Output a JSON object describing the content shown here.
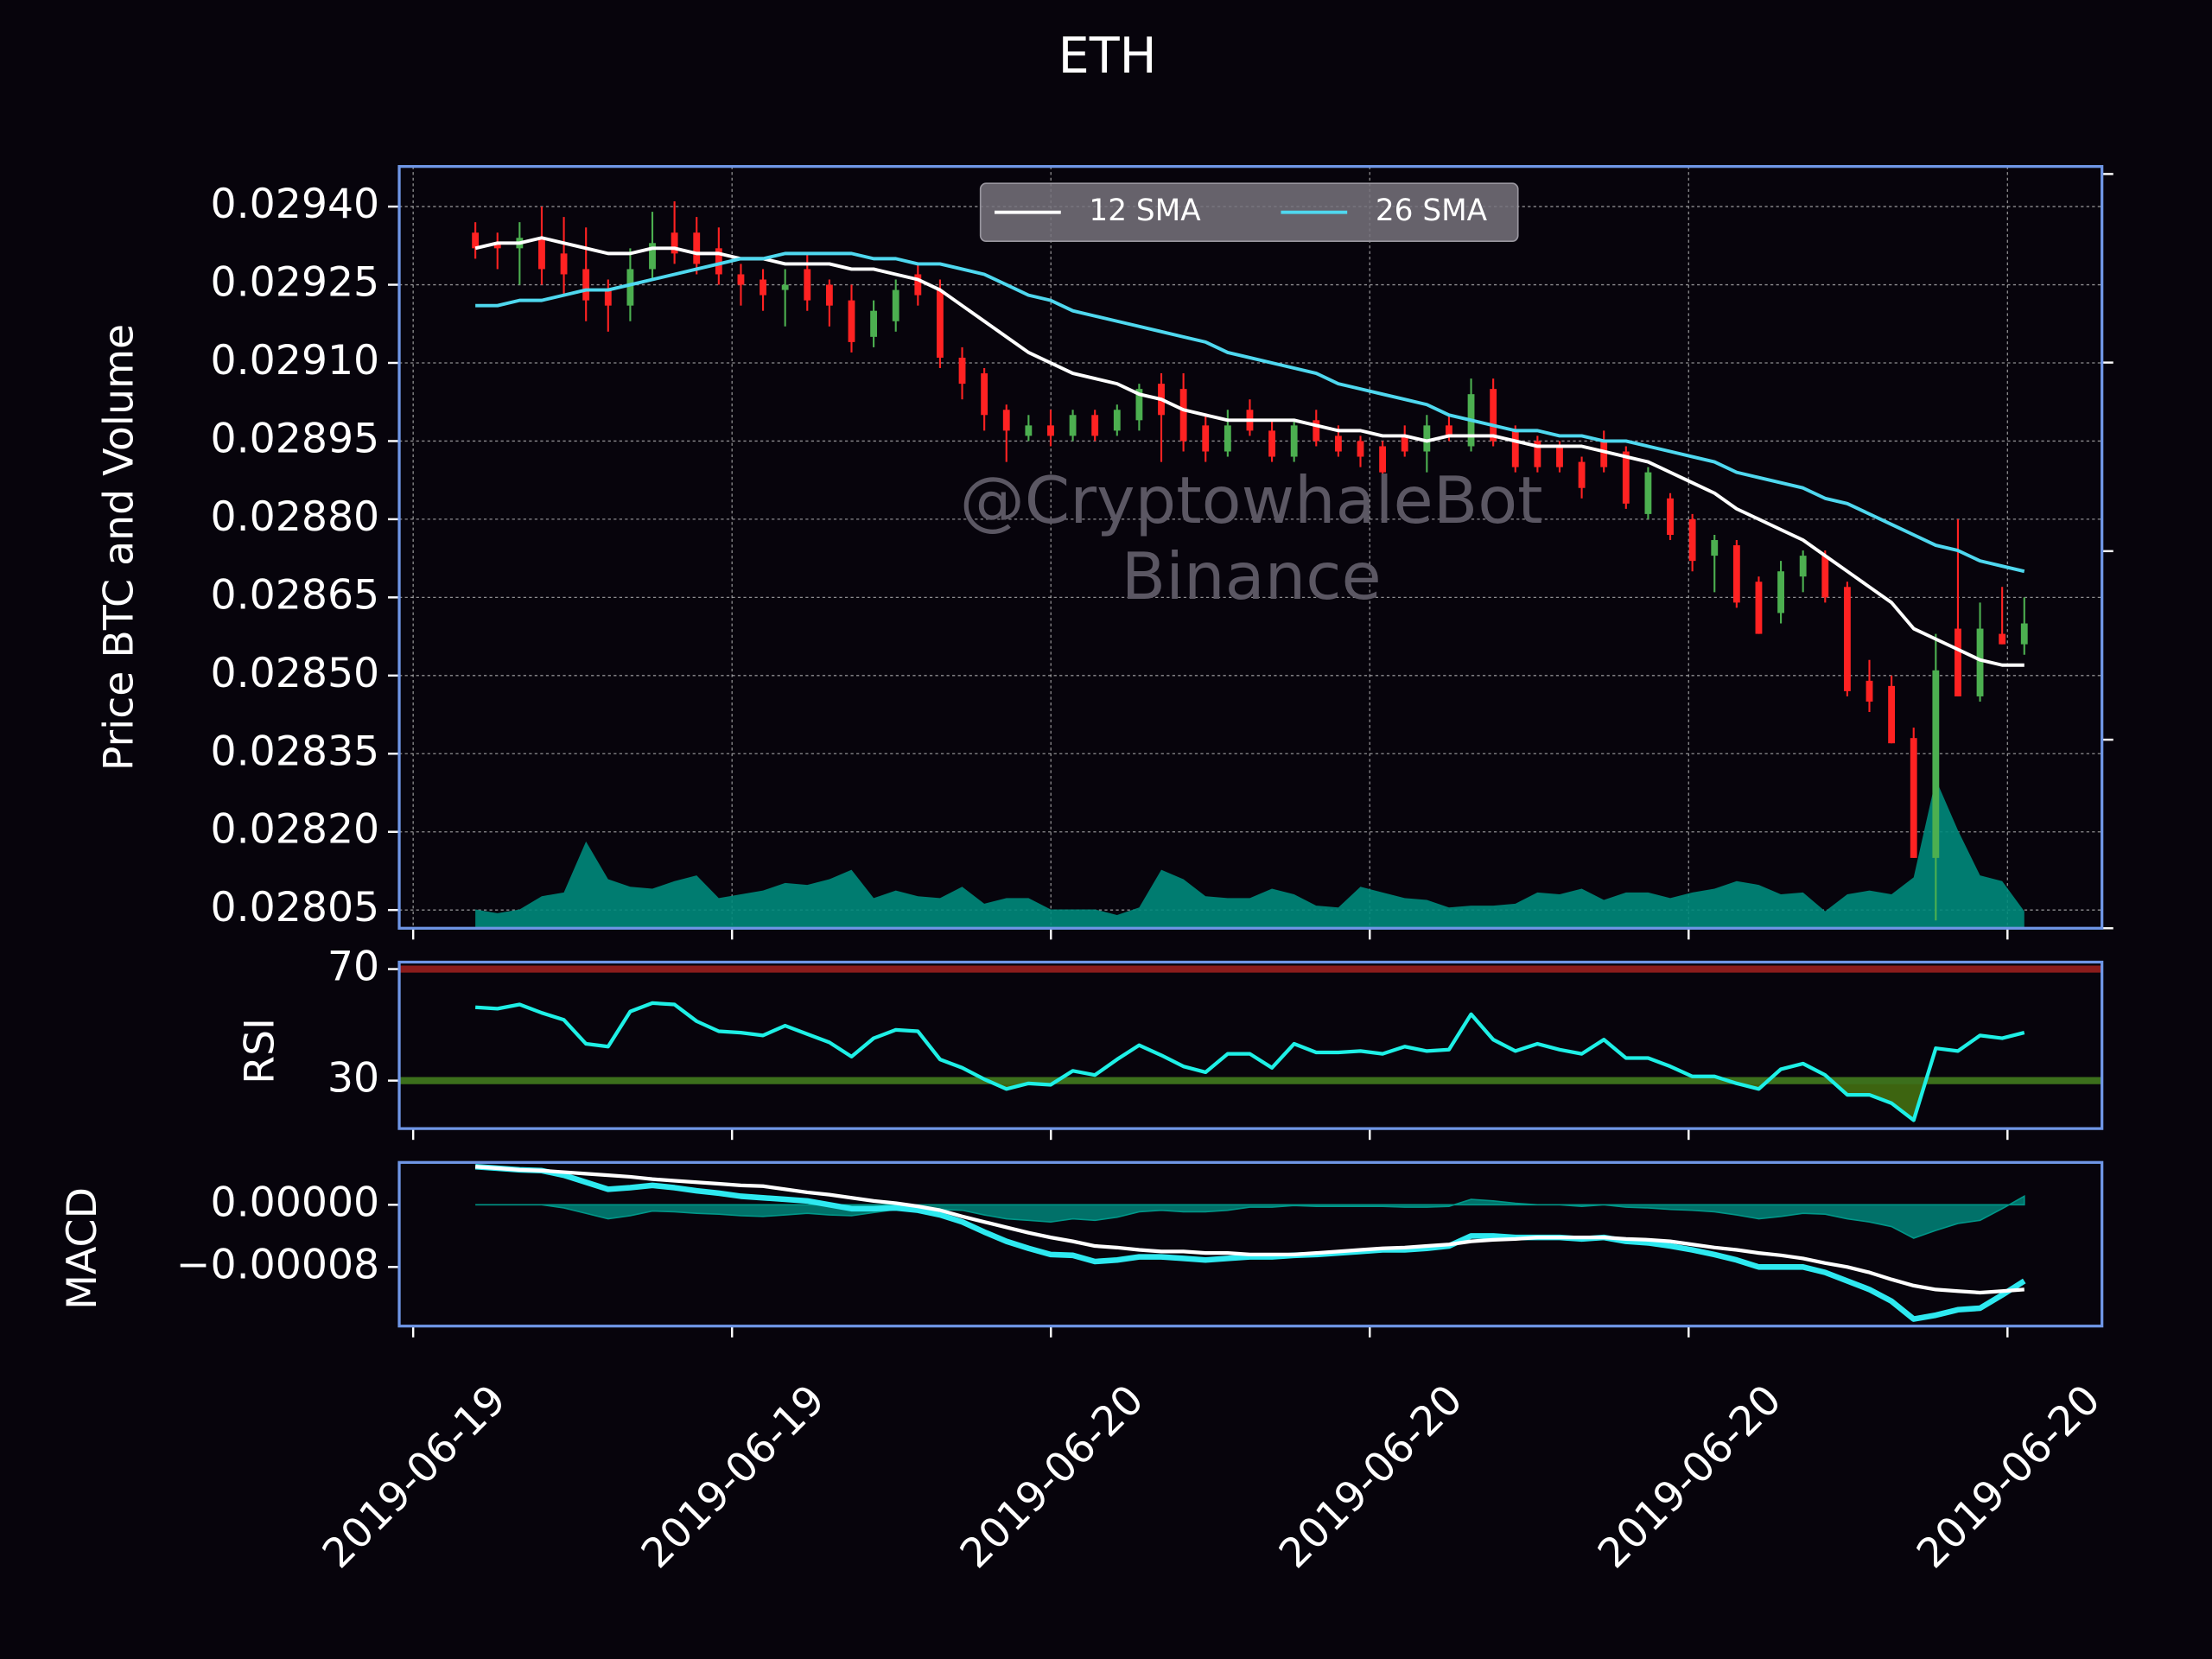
{
  "chart_data": [
    {
      "type": "candlestick",
      "title": "ETH",
      "ylabel": "Price BTC and Volume",
      "up_color": "#4caf50",
      "down_color": "#ff2222",
      "grid": true,
      "legend": "upper center",
      "annotations": [
        "@CryptowhaleBot",
        "Binance"
      ],
      "open": [
        0.02935,
        0.02933,
        0.02932,
        0.02934,
        0.02931,
        0.02928,
        0.02924,
        0.02921,
        0.02928,
        0.02935,
        0.02935,
        0.02932,
        0.02927,
        0.02926,
        0.02924,
        0.02928,
        0.02925,
        0.02922,
        0.02915,
        0.02918,
        0.02927,
        0.02924,
        0.02911,
        0.02908,
        0.02901,
        0.02896,
        0.02898,
        0.02896,
        0.029,
        0.02897,
        0.02899,
        0.02906,
        0.02905,
        0.02898,
        0.02893,
        0.02901,
        0.02897,
        0.02892,
        0.02899,
        0.02896,
        0.02895,
        0.02894,
        0.02896,
        0.02893,
        0.02898,
        0.02894,
        0.02905,
        0.02897,
        0.02895,
        0.02894,
        0.02891,
        0.02895,
        0.02893,
        0.02881,
        0.02884,
        0.0288,
        0.02873,
        0.02875,
        0.02868,
        0.02862,
        0.02869,
        0.02873,
        0.02867,
        0.02849,
        0.02848,
        0.02838,
        0.02815,
        0.02859,
        0.02846,
        0.02858,
        0.02856
      ],
      "high": [
        0.02937,
        0.02935,
        0.02937,
        0.0294,
        0.02938,
        0.02936,
        0.02926,
        0.02932,
        0.02939,
        0.02941,
        0.02938,
        0.02936,
        0.02929,
        0.02928,
        0.02928,
        0.02931,
        0.02926,
        0.02925,
        0.02922,
        0.02926,
        0.02929,
        0.02926,
        0.02913,
        0.02909,
        0.02902,
        0.029,
        0.02901,
        0.02901,
        0.02901,
        0.02902,
        0.02906,
        0.02908,
        0.02908,
        0.029,
        0.02901,
        0.02903,
        0.02899,
        0.02899,
        0.02901,
        0.02898,
        0.02896,
        0.02895,
        0.02898,
        0.029,
        0.029,
        0.02907,
        0.02907,
        0.02898,
        0.02896,
        0.02895,
        0.02892,
        0.02897,
        0.02894,
        0.0289,
        0.02885,
        0.02881,
        0.02877,
        0.02876,
        0.02869,
        0.02872,
        0.02874,
        0.02874,
        0.02868,
        0.02853,
        0.0285,
        0.0284,
        0.02858,
        0.0288,
        0.02864,
        0.02867,
        0.02865
      ],
      "low": [
        0.0293,
        0.02928,
        0.02925,
        0.02925,
        0.02923,
        0.02918,
        0.02916,
        0.02918,
        0.02926,
        0.02929,
        0.02927,
        0.02925,
        0.02921,
        0.0292,
        0.02917,
        0.0292,
        0.02917,
        0.02912,
        0.02913,
        0.02916,
        0.02921,
        0.02909,
        0.02903,
        0.02897,
        0.02891,
        0.02895,
        0.02894,
        0.02895,
        0.02895,
        0.02896,
        0.02897,
        0.02891,
        0.02893,
        0.02891,
        0.02892,
        0.02896,
        0.02891,
        0.02891,
        0.02894,
        0.02892,
        0.0289,
        0.02887,
        0.02892,
        0.02889,
        0.02895,
        0.02893,
        0.02894,
        0.02889,
        0.02889,
        0.02889,
        0.02884,
        0.02889,
        0.02882,
        0.0288,
        0.02876,
        0.0287,
        0.02866,
        0.02863,
        0.02858,
        0.0286,
        0.02866,
        0.02864,
        0.02846,
        0.02843,
        0.02837,
        0.02815,
        0.02803,
        0.02846,
        0.02845,
        0.02856,
        0.02854
      ],
      "close": [
        0.02932,
        0.02932,
        0.02934,
        0.02928,
        0.02927,
        0.02922,
        0.02921,
        0.02928,
        0.02933,
        0.02931,
        0.02929,
        0.02927,
        0.02925,
        0.02923,
        0.02925,
        0.02922,
        0.02921,
        0.02914,
        0.0292,
        0.02924,
        0.02923,
        0.02911,
        0.02906,
        0.029,
        0.02897,
        0.02898,
        0.02896,
        0.029,
        0.02896,
        0.02901,
        0.02905,
        0.029,
        0.02895,
        0.02893,
        0.02898,
        0.02897,
        0.02892,
        0.02898,
        0.02895,
        0.02893,
        0.02892,
        0.02889,
        0.02893,
        0.02898,
        0.02896,
        0.02904,
        0.02895,
        0.0289,
        0.0289,
        0.0289,
        0.02886,
        0.0289,
        0.02883,
        0.02889,
        0.02877,
        0.02872,
        0.02876,
        0.02864,
        0.02858,
        0.0287,
        0.02873,
        0.02865,
        0.02847,
        0.02845,
        0.02837,
        0.02815,
        0.02851,
        0.02846,
        0.02859,
        0.02856,
        0.0286
      ],
      "series": [
        {
          "name": "12 SMA",
          "color": "#ffffff",
          "values": [
            0.02932,
            0.02933,
            0.02933,
            0.02934,
            0.02933,
            0.02932,
            0.02931,
            0.02931,
            0.02932,
            0.02932,
            0.02931,
            0.02931,
            0.0293,
            0.0293,
            0.02929,
            0.02929,
            0.02929,
            0.02928,
            0.02928,
            0.02927,
            0.02926,
            0.02924,
            0.02921,
            0.02918,
            0.02915,
            0.02912,
            0.0291,
            0.02908,
            0.02907,
            0.02906,
            0.02904,
            0.02903,
            0.02901,
            0.029,
            0.02899,
            0.02899,
            0.02899,
            0.02899,
            0.02898,
            0.02897,
            0.02897,
            0.02896,
            0.02896,
            0.02895,
            0.02896,
            0.02896,
            0.02896,
            0.02895,
            0.02894,
            0.02894,
            0.02894,
            0.02893,
            0.02892,
            0.02891,
            0.02889,
            0.02887,
            0.02885,
            0.02882,
            0.0288,
            0.02878,
            0.02876,
            0.02873,
            0.0287,
            0.02867,
            0.02864,
            0.02859,
            0.02857,
            0.02855,
            0.02853,
            0.02852,
            0.02852
          ]
        },
        {
          "name": "26 SMA",
          "color": "#4fd8ef",
          "values": [
            0.02921,
            0.02921,
            0.02922,
            0.02922,
            0.02923,
            0.02924,
            0.02924,
            0.02925,
            0.02926,
            0.02927,
            0.02928,
            0.02929,
            0.0293,
            0.0293,
            0.02931,
            0.02931,
            0.02931,
            0.02931,
            0.0293,
            0.0293,
            0.02929,
            0.02929,
            0.02928,
            0.02927,
            0.02925,
            0.02923,
            0.02922,
            0.0292,
            0.02919,
            0.02918,
            0.02917,
            0.02916,
            0.02915,
            0.02914,
            0.02912,
            0.02911,
            0.0291,
            0.02909,
            0.02908,
            0.02906,
            0.02905,
            0.02904,
            0.02903,
            0.02902,
            0.029,
            0.02899,
            0.02898,
            0.02897,
            0.02897,
            0.02896,
            0.02896,
            0.02895,
            0.02895,
            0.02894,
            0.02893,
            0.02892,
            0.02891,
            0.02889,
            0.02888,
            0.02887,
            0.02886,
            0.02884,
            0.02883,
            0.02881,
            0.02879,
            0.02877,
            0.02875,
            0.02874,
            0.02872,
            0.02871,
            0.0287
          ]
        }
      ],
      "volume": {
        "axis": "y2",
        "color": "#00897b",
        "values": [
          0.1,
          0.08,
          0.1,
          0.17,
          0.19,
          0.46,
          0.26,
          0.22,
          0.21,
          0.25,
          0.28,
          0.16,
          0.18,
          0.2,
          0.24,
          0.23,
          0.26,
          0.31,
          0.16,
          0.2,
          0.17,
          0.16,
          0.22,
          0.13,
          0.16,
          0.16,
          0.1,
          0.1,
          0.1,
          0.07,
          0.11,
          0.31,
          0.26,
          0.17,
          0.16,
          0.16,
          0.21,
          0.18,
          0.12,
          0.11,
          0.22,
          0.19,
          0.16,
          0.15,
          0.11,
          0.12,
          0.12,
          0.13,
          0.19,
          0.18,
          0.21,
          0.15,
          0.19,
          0.19,
          0.16,
          0.19,
          0.21,
          0.25,
          0.23,
          0.18,
          0.19,
          0.09,
          0.18,
          0.2,
          0.18,
          0.27,
          0.79,
          0.52,
          0.28,
          0.25,
          0.09
        ]
      },
      "ylim": [
        0.028015,
        0.029477
      ],
      "yticks": [
        {
          "value": 0.0294,
          "label": "0.02940"
        },
        0.02925,
        {
          "value": 0.0291,
          "label": "0.02910"
        },
        0.02895,
        {
          "value": 0.0288,
          "label": "0.02880"
        },
        0.02865,
        {
          "value": 0.0285,
          "label": "0.02850"
        },
        0.02835,
        {
          "value": 0.0282,
          "label": "0.02820"
        },
        0.02805
      ],
      "y2lim": [
        0,
        4.04
      ],
      "y2ticks": [
        0,
        1,
        2,
        3,
        4
      ]
    },
    {
      "type": "line",
      "ylabel": "RSI",
      "series": [
        {
          "color": "#1ef0e6",
          "values": [
            56.3,
            55.8,
            57.3,
            54.3,
            51.8,
            43.2,
            42.2,
            54.8,
            57.8,
            57.3,
            51.3,
            47.7,
            47.2,
            46.2,
            49.7,
            46.7,
            43.7,
            38.6,
            45.2,
            48.2,
            47.7,
            37.6,
            34.6,
            30.5,
            27.0,
            29.0,
            28.5,
            33.5,
            32.0,
            37.6,
            42.7,
            39.1,
            35.1,
            33.0,
            39.6,
            39.6,
            34.6,
            43.2,
            40.1,
            40.1,
            40.6,
            39.6,
            42.2,
            40.6,
            41.1,
            53.8,
            44.7,
            40.6,
            43.2,
            41.1,
            39.6,
            44.7,
            38.1,
            38.1,
            35.1,
            31.5,
            31.5,
            29.0,
            27.0,
            34.1,
            36.1,
            32.0,
            24.9,
            24.9,
            21.9,
            15.8,
            41.6,
            40.6,
            46.2,
            45.2,
            47.2
          ]
        }
      ],
      "levels": [
        {
          "value": 70,
          "color": "#8b1c1c"
        },
        {
          "value": 30,
          "color": "#3c6f1c",
          "fill_below": "#3d6410"
        }
      ],
      "ylim": [
        12.8,
        72.5
      ],
      "yticks": [
        30,
        70
      ]
    },
    {
      "type": "line",
      "ylabel": "MACD",
      "series": [
        {
          "color": "#2ee9f0",
          "values": [
            4.9e-05,
            4.7e-05,
            4.5e-05,
            4.4e-05,
            3.8e-05,
            2.9e-05,
            2e-05,
            2.2e-05,
            2.5e-05,
            2.2e-05,
            1.8e-05,
            1.5e-05,
            1.1e-05,
            9e-06,
            7e-06,
            5e-06,
            0.0,
            -5e-06,
            -5e-06,
            -4e-06,
            -7e-06,
            -1.3e-05,
            -2.2e-05,
            -3.5e-05,
            -4.7e-05,
            -5.6e-05,
            -6.4e-05,
            -6.5e-05,
            -7.3e-05,
            -7.1e-05,
            -6.7e-05,
            -6.7e-05,
            -6.9e-05,
            -7.1e-05,
            -6.9e-05,
            -6.7e-05,
            -6.7e-05,
            -6.5e-05,
            -6.4e-05,
            -6.2e-05,
            -6e-05,
            -5.8e-05,
            -5.8e-05,
            -5.6e-05,
            -5.3e-05,
            -4e-05,
            -4e-05,
            -4.2e-05,
            -4.2e-05,
            -4.2e-05,
            -4.4e-05,
            -4.2e-05,
            -4.7e-05,
            -4.9e-05,
            -5.3e-05,
            -5.8e-05,
            -6.4e-05,
            -7.1e-05,
            -8e-05,
            -8e-05,
            -8e-05,
            -8.7e-05,
            -9.8e-05,
            -0.000109,
            -0.000124,
            -0.000147,
            -0.000142,
            -0.000135,
            -0.000133,
            -0.000116,
            -9.8e-05
          ]
        },
        {
          "color": "#ffffff",
          "values": [
            4.9e-05,
            4.7e-05,
            4.5e-05,
            4.4e-05,
            4.2e-05,
            4e-05,
            3.8e-05,
            3.6e-05,
            3.3e-05,
            3.1e-05,
            2.9e-05,
            2.7e-05,
            2.5e-05,
            2.4e-05,
            2e-05,
            1.6e-05,
            1.3e-05,
            9e-06,
            5e-06,
            2e-06,
            -2e-06,
            -7e-06,
            -1.5e-05,
            -2.2e-05,
            -2.9e-05,
            -3.6e-05,
            -4.2e-05,
            -4.7e-05,
            -5.3e-05,
            -5.5e-05,
            -5.8e-05,
            -6e-05,
            -6e-05,
            -6.2e-05,
            -6.2e-05,
            -6.4e-05,
            -6.4e-05,
            -6.4e-05,
            -6.2e-05,
            -6e-05,
            -5.8e-05,
            -5.6e-05,
            -5.5e-05,
            -5.3e-05,
            -5.1e-05,
            -4.7e-05,
            -4.5e-05,
            -4.4e-05,
            -4.2e-05,
            -4.2e-05,
            -4.2e-05,
            -4.2e-05,
            -4.4e-05,
            -4.5e-05,
            -4.7e-05,
            -5.1e-05,
            -5.5e-05,
            -5.8e-05,
            -6.2e-05,
            -6.5e-05,
            -6.9e-05,
            -7.5e-05,
            -8e-05,
            -8.7e-05,
            -9.6e-05,
            -0.000104,
            -0.000109,
            -0.000111,
            -0.000113,
            -0.000111,
            -0.000109
          ]
        }
      ],
      "histogram": {
        "color": "#009688",
        "values": [
          0,
          0,
          0,
          0,
          -4e-06,
          -1.1e-05,
          -1.8e-05,
          -1.4e-05,
          -8e-06,
          -9e-06,
          -1.1e-05,
          -1.2e-05,
          -1.4e-05,
          -1.5e-05,
          -1.3e-05,
          -1.1e-05,
          -1.3e-05,
          -1.4e-05,
          -1e-05,
          -6e-06,
          -5e-06,
          -6e-06,
          -7e-06,
          -1.3e-05,
          -1.8e-05,
          -2e-05,
          -2.2e-05,
          -1.8e-05,
          -2e-05,
          -1.6e-05,
          -9e-06,
          -7e-06,
          -9e-06,
          -9e-06,
          -7e-06,
          -3e-06,
          -3e-06,
          -1e-06,
          -2e-06,
          -2e-06,
          -2e-06,
          -2e-06,
          -3e-06,
          -3e-06,
          -2e-06,
          7e-06,
          5e-06,
          2e-06,
          0,
          0,
          -2e-06,
          0,
          -3e-06,
          -4e-06,
          -6e-06,
          -7e-06,
          -9e-06,
          -1.3e-05,
          -1.8e-05,
          -1.5e-05,
          -1.1e-05,
          -1.2e-05,
          -1.8e-05,
          -2.2e-05,
          -2.8e-05,
          -4.3e-05,
          -3.3e-05,
          -2.4e-05,
          -2e-05,
          -5e-06,
          1.1e-05
        ]
      },
      "ylim": [
        -0.000156,
        5.45e-05
      ],
      "yticks": [
        {
          "value": 0,
          "label": "0.00000"
        },
        {
          "value": -8e-05,
          "label": "−0.00008"
        }
      ],
      "xlim": [
        -3.44,
        73.51
      ],
      "xticks": [
        {
          "value": -2.81,
          "label": "2019-06-19"
        },
        {
          "value": 11.6,
          "label": "2019-06-19"
        },
        {
          "value": 26.01,
          "label": "2019-06-20"
        },
        {
          "value": 40.42,
          "label": "2019-06-20"
        },
        {
          "value": 54.83,
          "label": "2019-06-20"
        },
        {
          "value": 69.24,
          "label": "2019-06-20"
        }
      ]
    }
  ]
}
